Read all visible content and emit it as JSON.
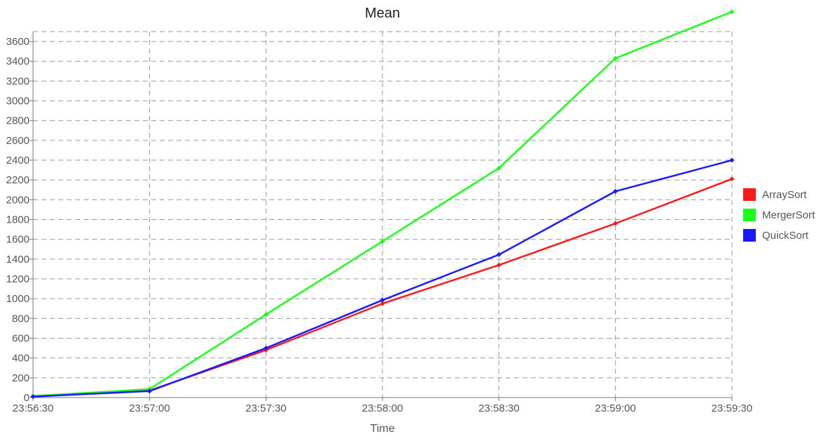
{
  "chart_data": {
    "type": "line",
    "title": "Mean",
    "xlabel": "Time",
    "ylabel": "",
    "x": [
      "23:56:30",
      "23:57:00",
      "23:57:30",
      "23:58:00",
      "23:58:30",
      "23:59:00",
      "23:59:30"
    ],
    "ylim": [
      0,
      3700
    ],
    "yticks": [
      0,
      200,
      400,
      600,
      800,
      1000,
      1200,
      1400,
      1600,
      1800,
      2000,
      2200,
      2400,
      2600,
      2800,
      3000,
      3200,
      3400,
      3600
    ],
    "grid": true,
    "legend": "right",
    "series": [
      {
        "name": "ArraySort",
        "color": "#ff1a1a",
        "values": [
          10,
          70,
          480,
          950,
          1340,
          1760,
          2210
        ]
      },
      {
        "name": "MergerSort",
        "color": "#1aff1a",
        "values": [
          15,
          85,
          840,
          1580,
          2320,
          3430,
          3900
        ]
      },
      {
        "name": "QuickSort",
        "color": "#1a1aff",
        "values": [
          10,
          65,
          500,
          985,
          1445,
          2085,
          2400
        ]
      }
    ]
  }
}
